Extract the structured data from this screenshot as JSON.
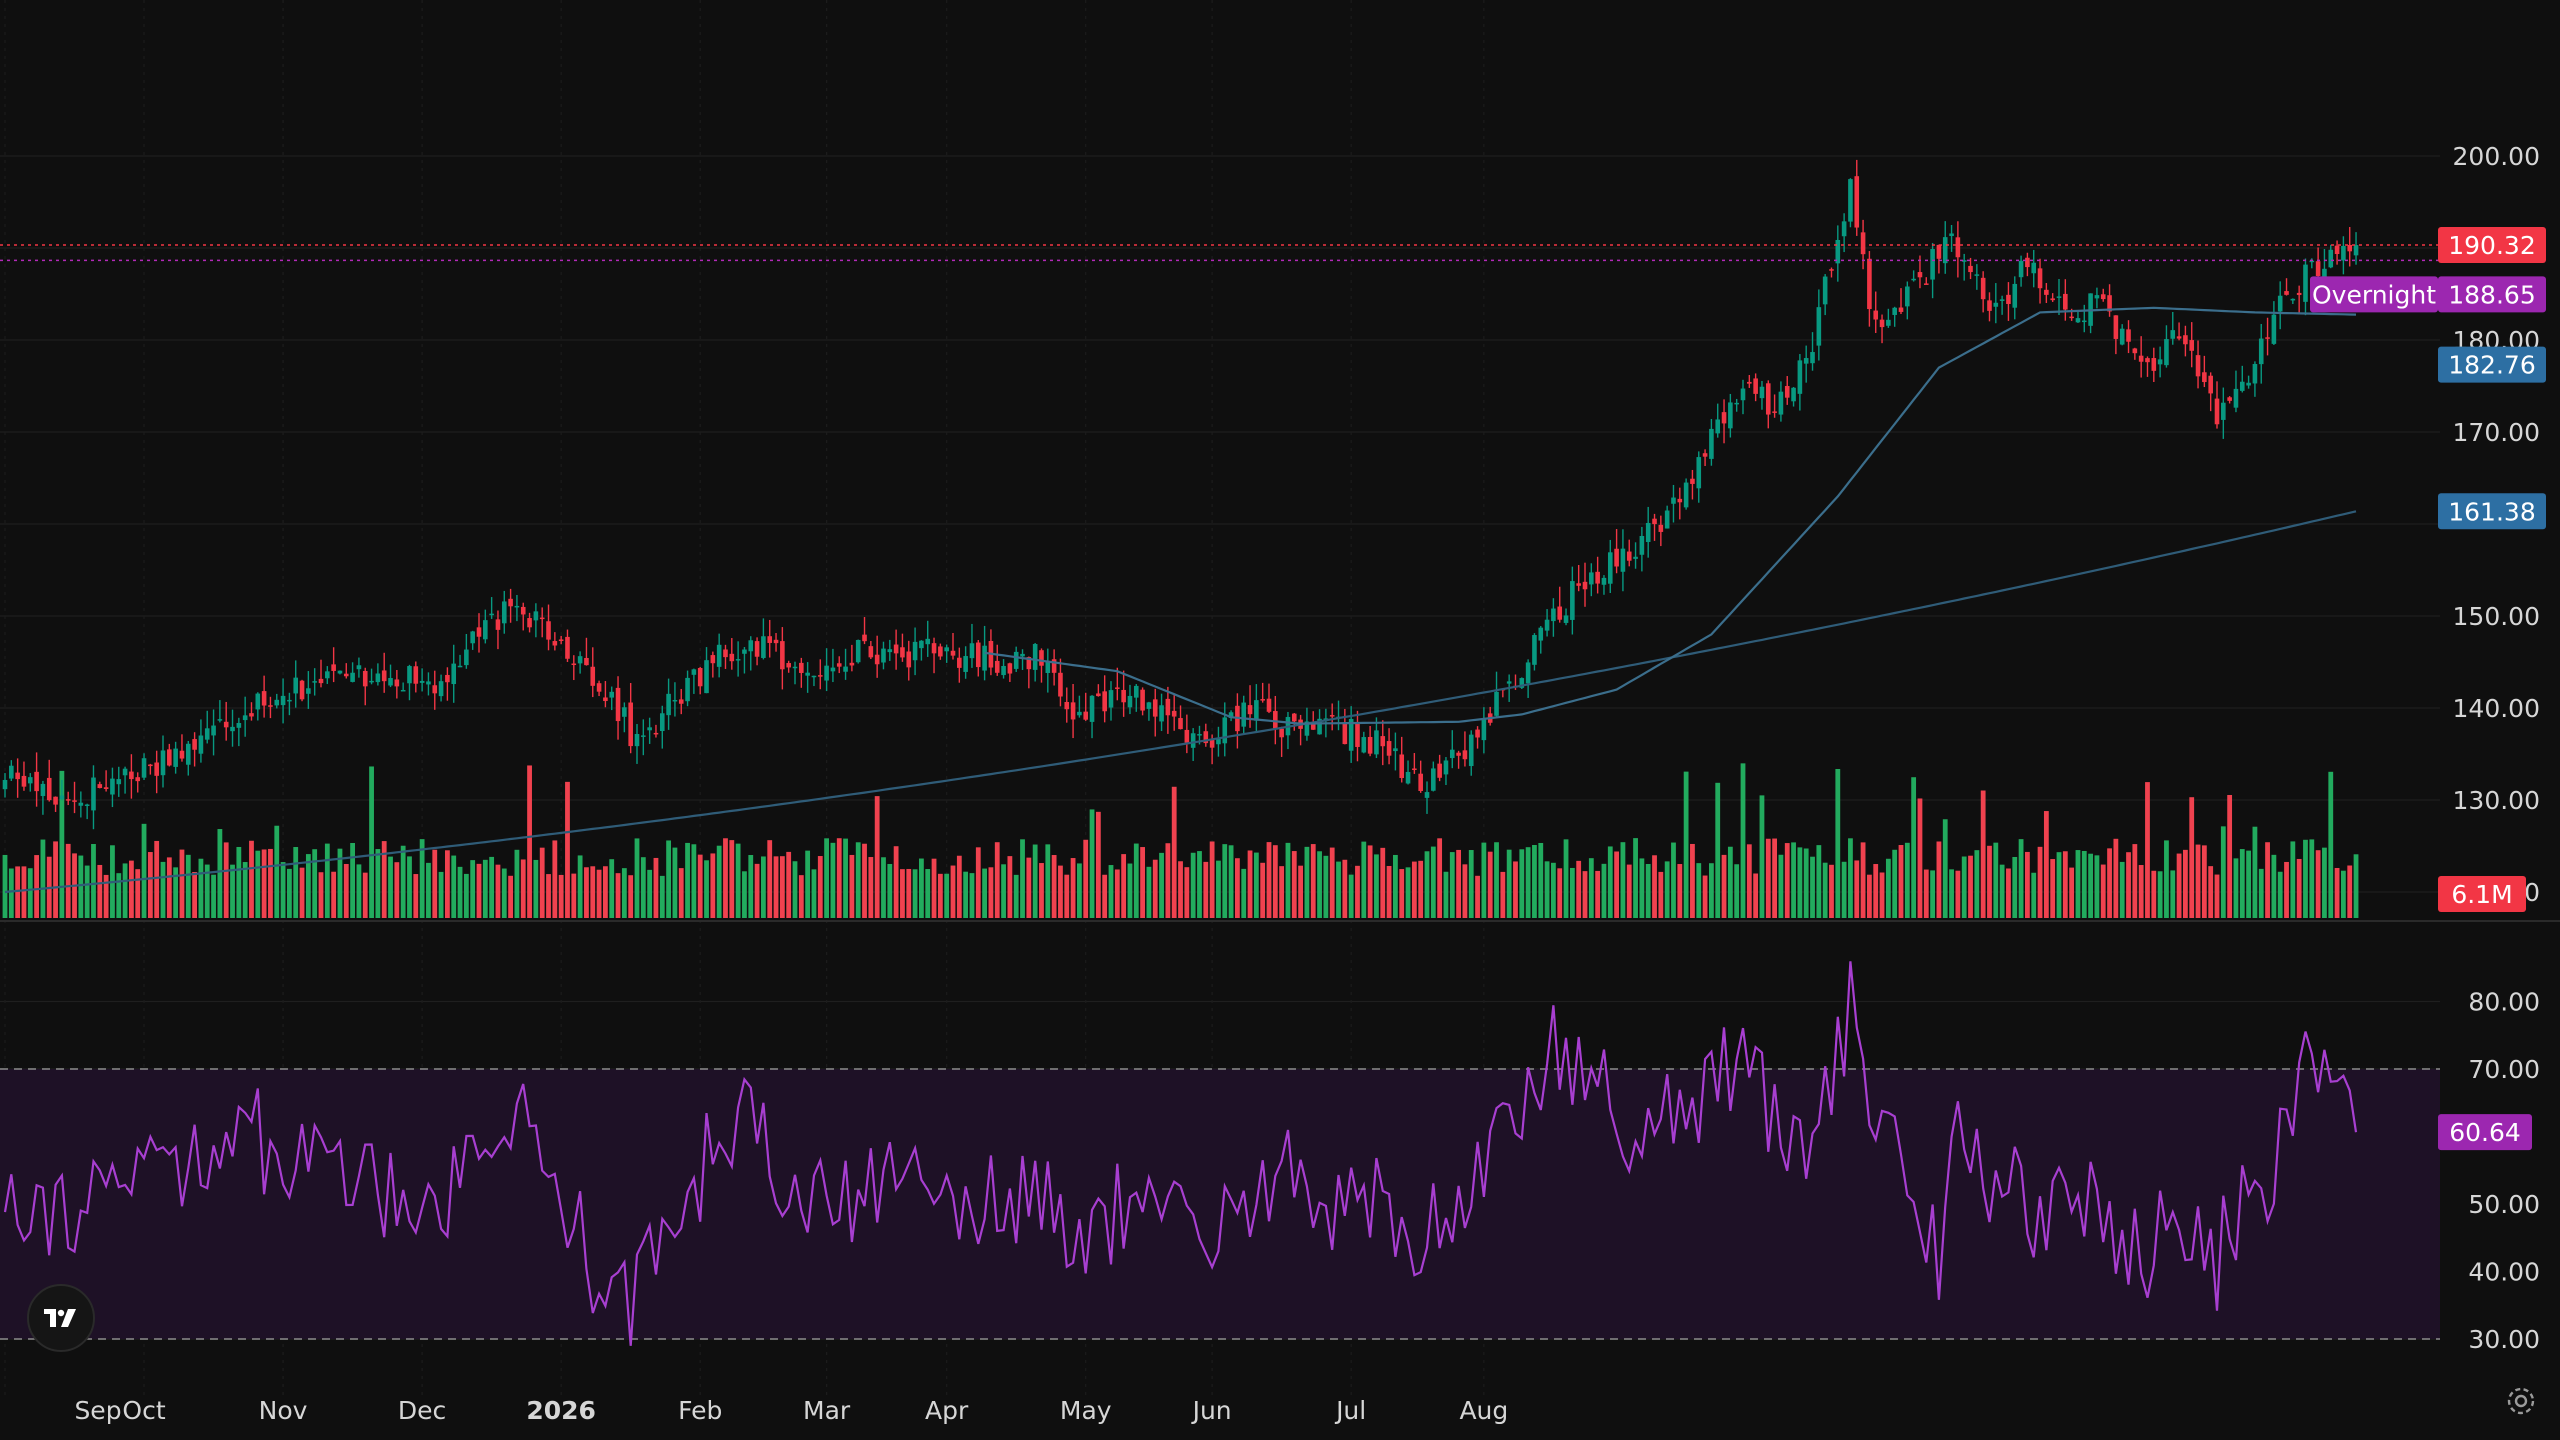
{
  "chart_data": [
    {
      "type": "candlestick",
      "y_ticks": [
        "200.00",
        "180.00",
        "170.00",
        "150.00",
        "140.00",
        "130.00",
        "120.00"
      ],
      "ylim": [
        113,
        204
      ],
      "x_ticks": [
        "Sep",
        "Oct",
        "Nov",
        "Dec",
        "2026",
        "Feb",
        "Mar",
        "Apr",
        "May",
        "Jun",
        "Jul",
        "Aug"
      ],
      "price_labels": {
        "last": "190.32",
        "overnight_label": "Overnight",
        "overnight": "188.65",
        "ma_short": "182.76",
        "ma_long": "161.38",
        "volume": "6.1M"
      },
      "close_anchors": [
        [
          0,
          133
        ],
        [
          10,
          130
        ],
        [
          20,
          133
        ],
        [
          30,
          136
        ],
        [
          40,
          141
        ],
        [
          50,
          143
        ],
        [
          60,
          144
        ],
        [
          68,
          142
        ],
        [
          78,
          150
        ],
        [
          84,
          150
        ],
        [
          90,
          146
        ],
        [
          96,
          141
        ],
        [
          100,
          136
        ],
        [
          106,
          141
        ],
        [
          114,
          146
        ],
        [
          120,
          147
        ],
        [
          126,
          143
        ],
        [
          132,
          146
        ],
        [
          140,
          146
        ],
        [
          150,
          146
        ],
        [
          158,
          145
        ],
        [
          164,
          146
        ],
        [
          170,
          139
        ],
        [
          178,
          142
        ],
        [
          186,
          138
        ],
        [
          192,
          137
        ],
        [
          198,
          140
        ],
        [
          204,
          137
        ],
        [
          210,
          138
        ],
        [
          218,
          136
        ],
        [
          224,
          131
        ],
        [
          230,
          135
        ],
        [
          238,
          142
        ],
        [
          246,
          151
        ],
        [
          254,
          156
        ],
        [
          262,
          160
        ],
        [
          270,
          169
        ],
        [
          276,
          175
        ],
        [
          280,
          172
        ],
        [
          286,
          180
        ],
        [
          292,
          196
        ],
        [
          296,
          181
        ],
        [
          302,
          186
        ],
        [
          308,
          191
        ],
        [
          314,
          183
        ],
        [
          320,
          188
        ],
        [
          326,
          183
        ],
        [
          332,
          184
        ],
        [
          338,
          177
        ],
        [
          344,
          180
        ],
        [
          350,
          172
        ],
        [
          354,
          175
        ],
        [
          360,
          184
        ],
        [
          366,
          188
        ],
        [
          372,
          190.32
        ]
      ],
      "ma_short_anchors": [
        [
          155,
          146
        ],
        [
          176,
          144
        ],
        [
          194,
          139
        ],
        [
          205,
          138.3
        ],
        [
          230,
          138.5
        ],
        [
          240,
          139.3
        ],
        [
          255,
          142
        ],
        [
          270,
          148
        ],
        [
          290,
          163
        ],
        [
          306,
          177
        ],
        [
          322,
          183
        ],
        [
          340,
          183.5
        ],
        [
          356,
          183
        ],
        [
          372,
          182.76
        ]
      ],
      "ma_long_range": [
        120,
        161.38
      ],
      "rsi": {
        "y_ticks": [
          "80.00",
          "70.00",
          "50.00",
          "40.00",
          "30.00"
        ],
        "ylim": [
          30,
          87
        ],
        "value_label": "60.64",
        "band": [
          30,
          70
        ]
      }
    }
  ]
}
